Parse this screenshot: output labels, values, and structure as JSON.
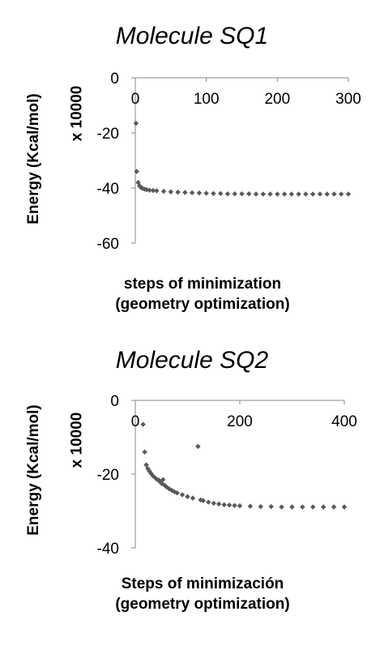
{
  "chart_data": [
    {
      "type": "scatter",
      "title": "Molecule SQ1",
      "ylabel": "Energy (Kcal/mol)",
      "ylabel_multiplier": "x 10000",
      "xlabel_line1": "steps of minimization",
      "xlabel_line2": "(geometry optimization)",
      "xlim": [
        0,
        300
      ],
      "ylim": [
        -60,
        0
      ],
      "xticks": [
        "0",
        "100",
        "200",
        "300"
      ],
      "yticks": [
        "0",
        "-20",
        "-40",
        "-60"
      ],
      "x_axis_position": "top",
      "marker_color": "#595959",
      "grid": false,
      "points": [
        [
          1,
          -16.5
        ],
        [
          2,
          -34
        ],
        [
          4,
          -38
        ],
        [
          6,
          -39.2
        ],
        [
          8,
          -39.8
        ],
        [
          10,
          -40.1
        ],
        [
          13,
          -40.4
        ],
        [
          16,
          -40.6
        ],
        [
          20,
          -40.8
        ],
        [
          25,
          -40.9
        ],
        [
          30,
          -41.0
        ],
        [
          40,
          -41.2
        ],
        [
          50,
          -41.4
        ],
        [
          60,
          -41.5
        ],
        [
          70,
          -41.6
        ],
        [
          80,
          -41.7
        ],
        [
          90,
          -41.8
        ],
        [
          100,
          -41.9
        ],
        [
          110,
          -42.0
        ],
        [
          120,
          -42.0
        ],
        [
          130,
          -42.1
        ],
        [
          140,
          -42.1
        ],
        [
          150,
          -42.1
        ],
        [
          160,
          -42.1
        ],
        [
          170,
          -42.2
        ],
        [
          180,
          -42.2
        ],
        [
          190,
          -42.2
        ],
        [
          200,
          -42.2
        ],
        [
          210,
          -42.2
        ],
        [
          220,
          -42.2
        ],
        [
          230,
          -42.2
        ],
        [
          240,
          -42.2
        ],
        [
          250,
          -42.2
        ],
        [
          260,
          -42.2
        ],
        [
          270,
          -42.2
        ],
        [
          280,
          -42.2
        ],
        [
          290,
          -42.2
        ],
        [
          300,
          -42.2
        ]
      ]
    },
    {
      "type": "scatter",
      "title": "Molecule SQ2",
      "ylabel": "Energy (Kcal/mol)",
      "ylabel_multiplier": "x 10000",
      "xlabel_line1": "Steps of minimización",
      "xlabel_line2": "(geometry optimization)",
      "xlim": [
        0,
        400
      ],
      "ylim": [
        -40,
        0
      ],
      "xticks": [
        "0",
        "200",
        "400"
      ],
      "yticks": [
        "0",
        "-20",
        "-40"
      ],
      "x_axis_position": "top",
      "marker_color": "#595959",
      "grid": false,
      "points": [
        [
          15,
          -6.5
        ],
        [
          18,
          -14
        ],
        [
          21,
          -17.5
        ],
        [
          24,
          -18.5
        ],
        [
          27,
          -19.2
        ],
        [
          30,
          -19.8
        ],
        [
          34,
          -20.5
        ],
        [
          38,
          -21.0
        ],
        [
          42,
          -21.5
        ],
        [
          45,
          -21.6
        ],
        [
          48,
          -22.2
        ],
        [
          51,
          -22.6
        ],
        [
          53,
          -21.5
        ],
        [
          56,
          -23.0
        ],
        [
          60,
          -23.5
        ],
        [
          65,
          -24.0
        ],
        [
          70,
          -24.4
        ],
        [
          75,
          -24.8
        ],
        [
          80,
          -25.1
        ],
        [
          90,
          -25.6
        ],
        [
          100,
          -26.1
        ],
        [
          110,
          -26.5
        ],
        [
          120,
          -12.5
        ],
        [
          125,
          -27.0
        ],
        [
          130,
          -27.2
        ],
        [
          140,
          -27.6
        ],
        [
          150,
          -27.9
        ],
        [
          160,
          -28.1
        ],
        [
          170,
          -28.3
        ],
        [
          180,
          -28.4
        ],
        [
          190,
          -28.5
        ],
        [
          200,
          -28.6
        ],
        [
          220,
          -28.7
        ],
        [
          240,
          -28.8
        ],
        [
          260,
          -28.8
        ],
        [
          280,
          -28.9
        ],
        [
          300,
          -28.9
        ],
        [
          320,
          -28.9
        ],
        [
          340,
          -28.9
        ],
        [
          360,
          -28.9
        ],
        [
          380,
          -28.9
        ],
        [
          400,
          -28.9
        ]
      ]
    }
  ]
}
